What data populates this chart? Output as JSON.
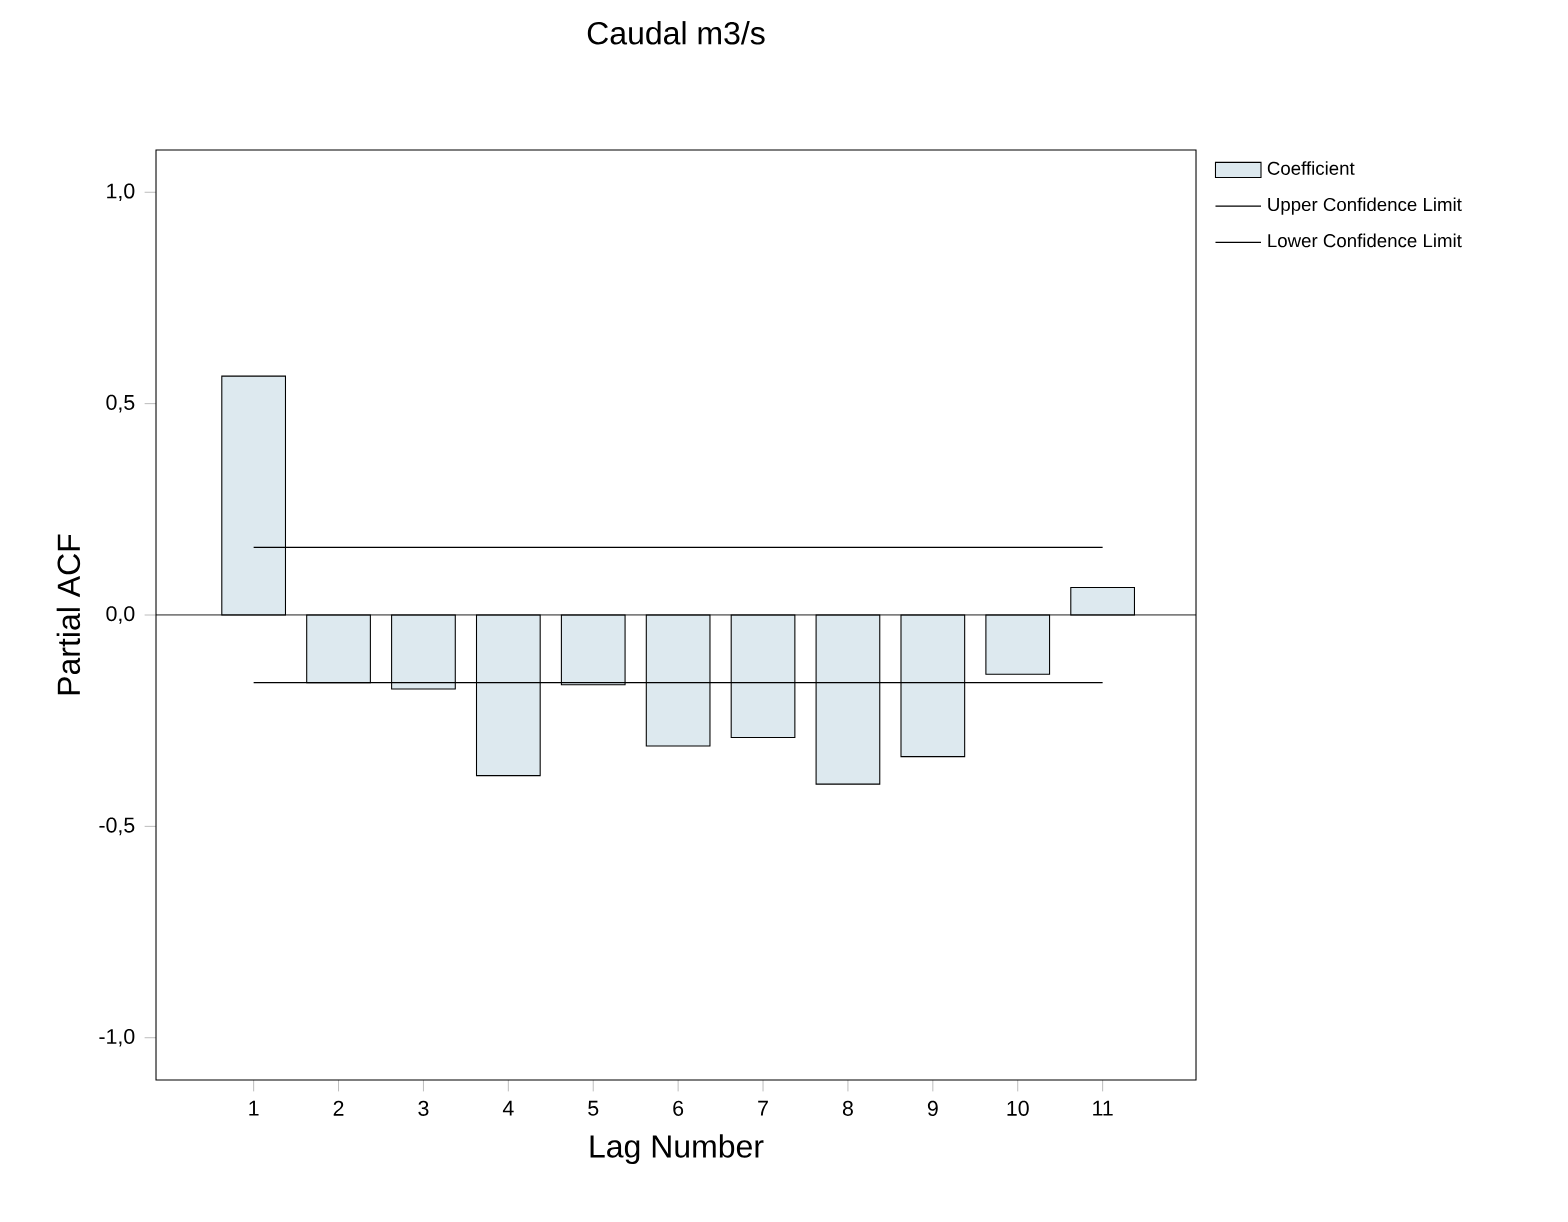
{
  "chart_data": {
    "type": "bar",
    "title": "Caudal m3/s",
    "xlabel": "Lag Number",
    "ylabel": "Partial ACF",
    "categories": [
      "1",
      "2",
      "3",
      "4",
      "5",
      "6",
      "7",
      "8",
      "9",
      "10",
      "11"
    ],
    "series": [
      {
        "name": "Coefficient",
        "color": "#dde9ef",
        "values": [
          0.565,
          -0.16,
          -0.175,
          -0.38,
          -0.165,
          -0.31,
          -0.29,
          -0.4,
          -0.335,
          -0.14,
          0.065
        ]
      },
      {
        "name": "Upper Confidence Limit",
        "type": "line",
        "color": "#000000",
        "values": [
          0.16,
          0.16,
          0.16,
          0.16,
          0.16,
          0.16,
          0.16,
          0.16,
          0.16,
          0.16,
          0.16
        ]
      },
      {
        "name": "Lower Confidence Limit",
        "type": "line",
        "color": "#000000",
        "values": [
          -0.16,
          -0.16,
          -0.16,
          -0.16,
          -0.16,
          -0.16,
          -0.16,
          -0.16,
          -0.16,
          -0.16,
          -0.16
        ]
      }
    ],
    "ylim": [
      -1.1,
      1.1
    ],
    "yticks": [
      {
        "value": -1.0,
        "label": "-1,0"
      },
      {
        "value": -0.5,
        "label": "-0,5"
      },
      {
        "value": 0.0,
        "label": "0,0"
      },
      {
        "value": 0.5,
        "label": "0,5"
      },
      {
        "value": 1.0,
        "label": "1,0"
      }
    ],
    "ref_lines": [
      {
        "axis": "y",
        "value": 0,
        "color": "#000000"
      }
    ],
    "legend": "top right"
  }
}
